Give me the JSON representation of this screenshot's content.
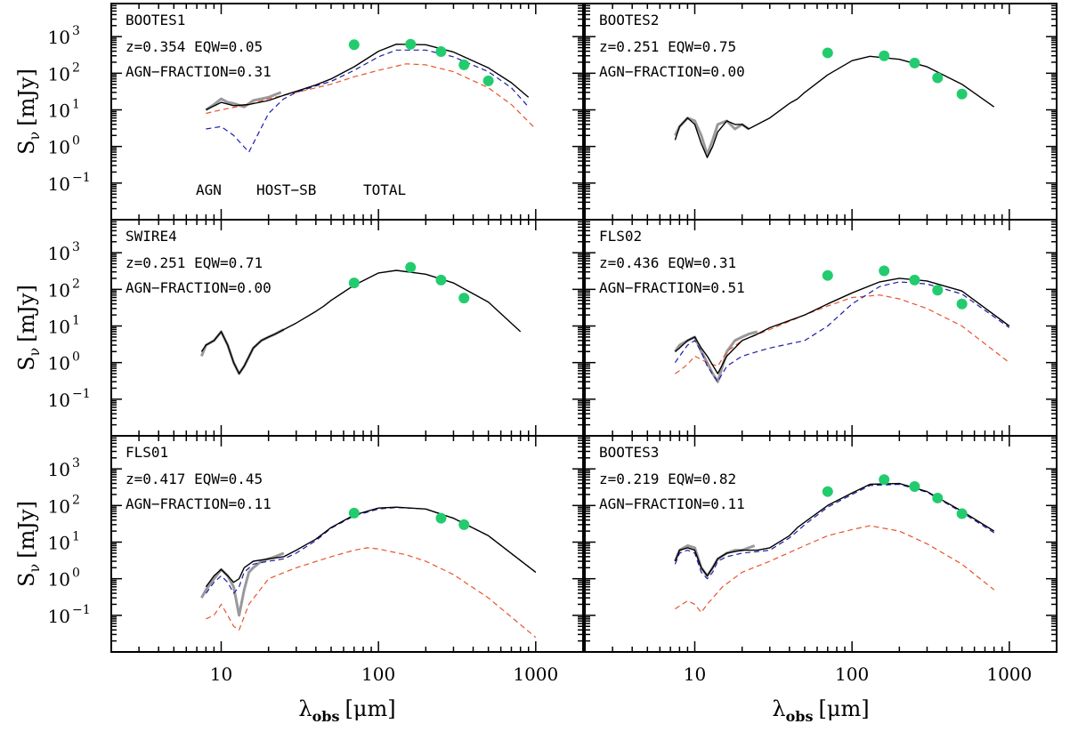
{
  "figure": {
    "xlabel": "λ",
    "xlabel_sub": "obs",
    "xlabel_unit": "[μm]",
    "ylabel": "S",
    "ylabel_sub": "ν",
    "ylabel_unit": "[mJy]",
    "x_ticks": [
      "10",
      "100",
      "1000"
    ],
    "y_ticks": [
      {
        "base": "10",
        "exp": "3"
      },
      {
        "base": "10",
        "exp": "2"
      },
      {
        "base": "10",
        "exp": "1"
      },
      {
        "base": "10",
        "exp": "0"
      },
      {
        "base": "10",
        "exp": "−1"
      }
    ]
  },
  "legend": {
    "agn": {
      "label": "AGN",
      "color": "#e8532b"
    },
    "host": {
      "label": "HOST−SB",
      "color": "#1c1ca8"
    },
    "total": {
      "label": "TOTAL",
      "color": "#000000"
    }
  },
  "colors": {
    "photometry": "#22cc6e",
    "spectrum": "#999999"
  },
  "chart_data": [
    {
      "type": "line",
      "name": "BOOTES1",
      "line1": "z=0.354   EQW=0.05",
      "line2": "AGN−FRACTION=0.31",
      "xlim": [
        2,
        2000
      ],
      "ylim": [
        0.01,
        8000
      ],
      "log_x": true,
      "log_y": true,
      "photometry": {
        "x": [
          70,
          160,
          250,
          350,
          500
        ],
        "y": [
          600,
          620,
          390,
          170,
          62
        ]
      },
      "spectrum": {
        "x": [
          8,
          9,
          10,
          11,
          12,
          14,
          16,
          18,
          20,
          22,
          24
        ],
        "y": [
          10,
          14,
          20,
          16,
          15,
          12,
          18,
          20,
          22,
          26,
          30
        ]
      },
      "total": {
        "x": [
          8,
          10,
          12,
          15,
          20,
          25,
          30,
          40,
          50,
          70,
          100,
          130,
          200,
          300,
          500,
          700,
          900
        ],
        "y": [
          10,
          16,
          13,
          14,
          18,
          25,
          32,
          48,
          70,
          150,
          400,
          620,
          600,
          380,
          140,
          55,
          22
        ]
      },
      "host": {
        "x": [
          8,
          10,
          12,
          15,
          20,
          25,
          30,
          40,
          50,
          70,
          100,
          130,
          200,
          300,
          500,
          700,
          900
        ],
        "y": [
          3,
          3.5,
          2,
          0.7,
          8,
          20,
          30,
          45,
          60,
          120,
          280,
          430,
          430,
          280,
          110,
          40,
          12
        ]
      },
      "agn": {
        "x": [
          8,
          10,
          15,
          20,
          30,
          50,
          70,
          100,
          150,
          200,
          300,
          500,
          700,
          1000
        ],
        "y": [
          8,
          10,
          14,
          20,
          30,
          50,
          80,
          120,
          180,
          170,
          110,
          40,
          14,
          3
        ]
      }
    },
    {
      "type": "line",
      "name": "BOOTES2",
      "line1": "z=0.251   EQW=0.75",
      "line2": "AGN−FRACTION=0.00",
      "xlim": [
        2,
        2000
      ],
      "ylim": [
        0.01,
        8000
      ],
      "log_x": true,
      "log_y": true,
      "photometry": {
        "x": [
          70,
          160,
          250,
          350,
          500
        ],
        "y": [
          360,
          300,
          190,
          75,
          27
        ]
      },
      "spectrum": {
        "x": [
          7.5,
          8,
          9,
          10,
          11,
          12,
          13,
          14,
          16,
          18,
          20,
          22
        ],
        "y": [
          2,
          3.5,
          6,
          5,
          2,
          0.6,
          1.5,
          4,
          5,
          3,
          4,
          3
        ]
      },
      "total": {
        "x": [
          7.5,
          8,
          9,
          10,
          11,
          12,
          13,
          14,
          16,
          18,
          20,
          22,
          25,
          30,
          40,
          45,
          50,
          70,
          100,
          130,
          200,
          300,
          500,
          800
        ],
        "y": [
          1.5,
          3.5,
          6,
          4,
          1.2,
          0.5,
          1,
          2.5,
          5,
          4,
          4,
          3,
          4,
          6,
          15,
          20,
          30,
          90,
          220,
          290,
          240,
          150,
          50,
          12
        ]
      }
    },
    {
      "type": "line",
      "name": "SWIRE4",
      "line1": "z=0.251   EQW=0.71",
      "line2": "AGN−FRACTION=0.00",
      "xlim": [
        2,
        2000
      ],
      "ylim": [
        0.01,
        8000
      ],
      "log_x": true,
      "log_y": true,
      "photometry": {
        "x": [
          70,
          160,
          250,
          350
        ],
        "y": [
          150,
          400,
          180,
          58
        ]
      },
      "spectrum": {
        "x": [
          7.5,
          8,
          9,
          10,
          11,
          12,
          13,
          14,
          16,
          18,
          20,
          22,
          25
        ],
        "y": [
          1.5,
          3,
          4,
          7,
          3,
          1,
          0.5,
          0.8,
          2.5,
          4,
          5,
          6,
          8
        ]
      },
      "total": {
        "x": [
          7.5,
          8,
          9,
          10,
          11,
          12,
          13,
          14,
          16,
          18,
          20,
          22,
          25,
          30,
          40,
          45,
          50,
          70,
          100,
          130,
          200,
          300,
          500,
          800
        ],
        "y": [
          2,
          3,
          4,
          7,
          3,
          1,
          0.5,
          0.8,
          2.5,
          4,
          5,
          6,
          8,
          12,
          25,
          35,
          50,
          130,
          280,
          330,
          260,
          150,
          45,
          7
        ]
      }
    },
    {
      "type": "line",
      "name": "FLS02",
      "line1": "z=0.436   EQW=0.31",
      "line2": "AGN−FRACTION=0.51",
      "xlim": [
        2,
        2000
      ],
      "ylim": [
        0.01,
        8000
      ],
      "log_x": true,
      "log_y": true,
      "photometry": {
        "x": [
          70,
          160,
          250,
          350,
          500
        ],
        "y": [
          240,
          320,
          180,
          95,
          40
        ]
      },
      "spectrum": {
        "x": [
          7.5,
          8,
          9,
          10,
          11,
          12,
          13,
          14,
          15,
          16,
          18,
          20,
          22,
          25
        ],
        "y": [
          2,
          3,
          4,
          5,
          2,
          1,
          0.5,
          0.3,
          0.8,
          2,
          4,
          5,
          6,
          7
        ]
      },
      "total": {
        "x": [
          7.5,
          8,
          9,
          10,
          11,
          12,
          14,
          16,
          20,
          25,
          30,
          50,
          70,
          100,
          150,
          200,
          300,
          500,
          1000
        ],
        "y": [
          2,
          2.5,
          4,
          5,
          2.5,
          1.5,
          0.5,
          1.5,
          4,
          6,
          9,
          20,
          40,
          80,
          160,
          200,
          170,
          90,
          10
        ]
      },
      "host": {
        "x": [
          7.5,
          8,
          9,
          10,
          11,
          12,
          14,
          16,
          20,
          25,
          30,
          50,
          70,
          100,
          150,
          200,
          300,
          500,
          1000
        ],
        "y": [
          1,
          1.5,
          3,
          4,
          2,
          0.8,
          0.3,
          0.8,
          1.5,
          2,
          2.5,
          4,
          10,
          40,
          120,
          160,
          140,
          75,
          9
        ]
      },
      "agn": {
        "x": [
          7.5,
          8,
          9,
          10,
          12,
          14,
          16,
          20,
          30,
          50,
          70,
          100,
          150,
          200,
          300,
          500,
          1000
        ],
        "y": [
          0.5,
          0.6,
          0.9,
          1.5,
          1,
          0.8,
          2,
          4,
          8,
          20,
          35,
          60,
          70,
          55,
          30,
          10,
          1
        ]
      }
    },
    {
      "type": "line",
      "name": "FLS01",
      "line1": "z=0.417   EQW=0.45",
      "line2": "AGN−FRACTION=0.11",
      "xlim": [
        2,
        2000
      ],
      "ylim": [
        0.01,
        8000
      ],
      "log_x": true,
      "log_y": true,
      "photometry": {
        "x": [
          70,
          250,
          350
        ],
        "y": [
          62,
          45,
          30
        ]
      },
      "spectrum": {
        "x": [
          7.5,
          8,
          9,
          10,
          11,
          12,
          13,
          14,
          15,
          16,
          18,
          20,
          22,
          25
        ],
        "y": [
          0.3,
          0.5,
          1,
          1.8,
          1.2,
          0.6,
          0.1,
          0.5,
          1.5,
          2,
          3,
          3.5,
          4,
          5
        ]
      },
      "total": {
        "x": [
          8,
          9,
          10,
          11,
          12,
          13,
          14,
          16,
          20,
          25,
          30,
          40,
          50,
          70,
          100,
          130,
          200,
          300,
          500,
          1000
        ],
        "y": [
          0.6,
          1.2,
          1.8,
          1.2,
          0.8,
          1,
          2,
          3,
          3.5,
          4,
          6,
          12,
          25,
          55,
          85,
          90,
          80,
          45,
          15,
          1.5
        ]
      },
      "host": {
        "x": [
          8,
          9,
          10,
          11,
          12,
          13,
          14,
          16,
          20,
          25,
          30,
          40,
          50,
          70,
          100,
          130,
          200,
          300,
          500,
          1000
        ],
        "y": [
          0.4,
          0.8,
          1.2,
          0.8,
          0.4,
          0.6,
          1.5,
          2.5,
          3,
          3.5,
          5,
          11,
          24,
          52,
          80,
          88,
          80,
          45,
          15,
          1.5
        ]
      },
      "agn": {
        "x": [
          8,
          9,
          10,
          11,
          12,
          13,
          15,
          20,
          30,
          50,
          70,
          85,
          100,
          150,
          200,
          300,
          500,
          1000
        ],
        "y": [
          0.08,
          0.1,
          0.2,
          0.1,
          0.05,
          0.04,
          0.2,
          1,
          2,
          4,
          6,
          7,
          6.5,
          4.5,
          3,
          1.3,
          0.3,
          0.025
        ]
      }
    },
    {
      "type": "line",
      "name": "BOOTES3",
      "line1": "z=0.219   EQW=0.82",
      "line2": "AGN−FRACTION=0.11",
      "xlim": [
        2,
        2000
      ],
      "ylim": [
        0.01,
        8000
      ],
      "log_x": true,
      "log_y": true,
      "photometry": {
        "x": [
          70,
          160,
          250,
          350,
          500
        ],
        "y": [
          240,
          510,
          330,
          160,
          60
        ]
      },
      "spectrum": {
        "x": [
          7.5,
          8,
          9,
          10,
          11,
          12,
          13,
          14,
          16,
          18,
          20,
          22,
          24
        ],
        "y": [
          3,
          6,
          8,
          7,
          2,
          1.2,
          2,
          3.5,
          5,
          6,
          6,
          7,
          8
        ]
      },
      "total": {
        "x": [
          7.5,
          8,
          9,
          10,
          11,
          12,
          13,
          14,
          16,
          20,
          25,
          30,
          40,
          45,
          50,
          70,
          100,
          130,
          200,
          300,
          500,
          800
        ],
        "y": [
          3,
          6,
          7,
          6,
          2,
          1.2,
          2,
          3.5,
          5,
          6,
          6,
          7,
          15,
          25,
          35,
          100,
          220,
          380,
          400,
          240,
          70,
          20
        ]
      },
      "host": {
        "x": [
          7.5,
          8,
          9,
          10,
          11,
          12,
          13,
          14,
          16,
          20,
          25,
          30,
          40,
          45,
          50,
          70,
          100,
          130,
          200,
          300,
          500,
          800
        ],
        "y": [
          2.5,
          5,
          6,
          5,
          1.5,
          1,
          1.5,
          3,
          4,
          5,
          5.5,
          6,
          13,
          20,
          30,
          90,
          200,
          350,
          380,
          230,
          65,
          18
        ]
      },
      "agn": {
        "x": [
          7.5,
          8,
          9,
          10,
          11,
          12,
          15,
          20,
          30,
          50,
          70,
          100,
          130,
          200,
          300,
          500,
          800
        ],
        "y": [
          0.15,
          0.18,
          0.25,
          0.2,
          0.12,
          0.2,
          0.6,
          1.5,
          3,
          8,
          15,
          22,
          28,
          20,
          9,
          2.5,
          0.5
        ]
      }
    }
  ]
}
